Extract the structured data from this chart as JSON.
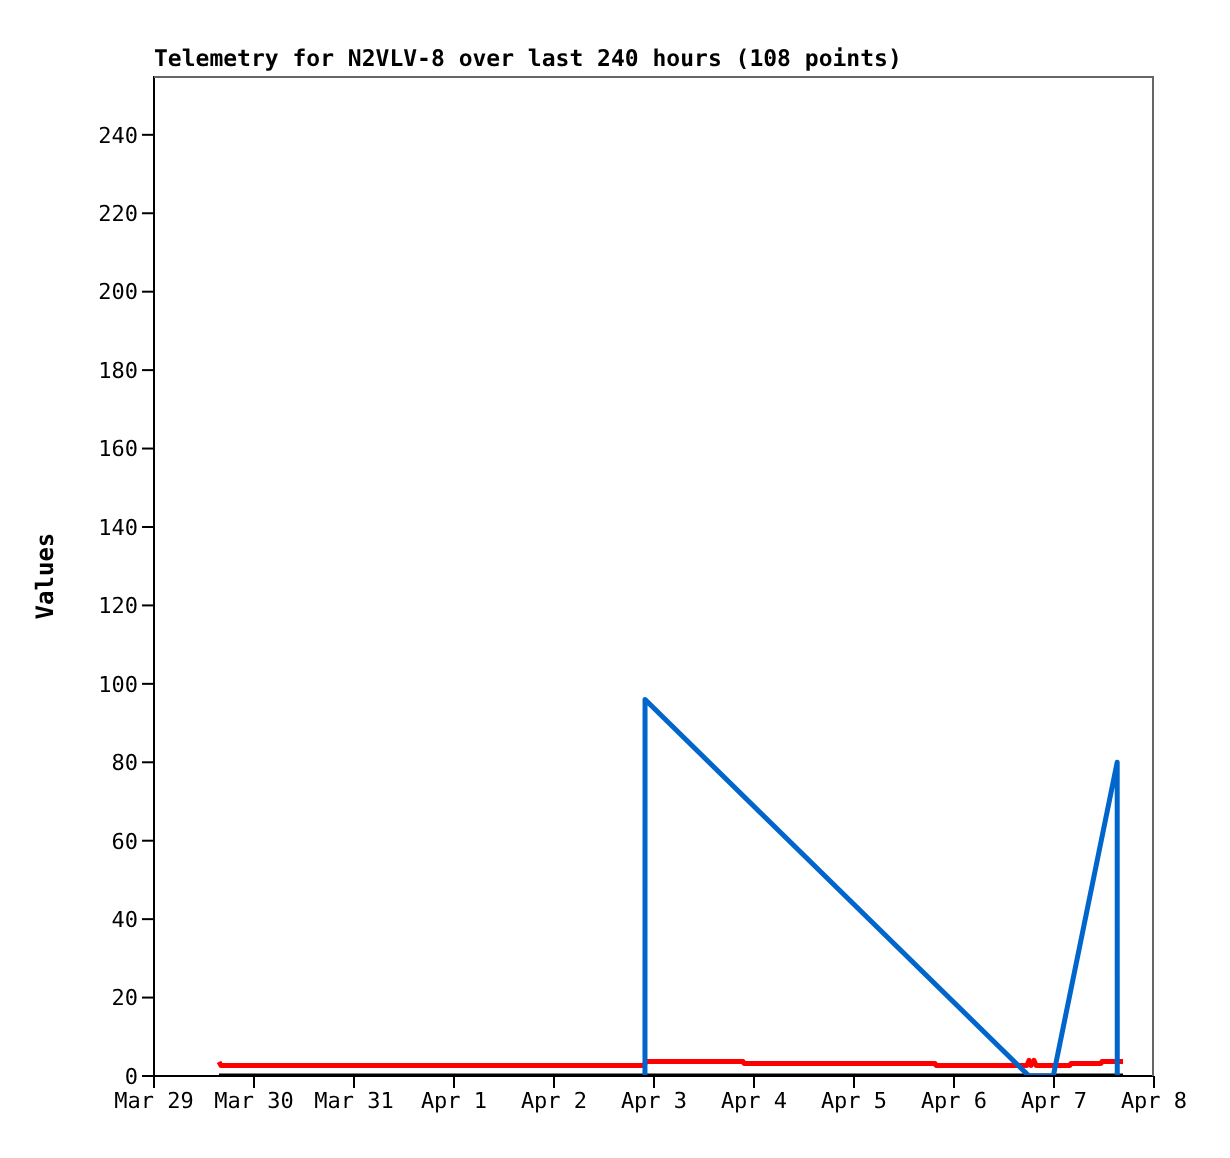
{
  "chart_data": {
    "type": "line",
    "title": "Telemetry for N2VLV-8 over last 240 hours (108 points)",
    "ylabel": "Values",
    "xlim": [
      "--03-29",
      "--04-08"
    ],
    "xticks": [
      {
        "value": "--03-29",
        "label": "Mar 29"
      },
      {
        "value": "--03-30",
        "label": "Mar 30"
      },
      {
        "value": "--03-31",
        "label": "Mar 31"
      },
      {
        "value": "--04-01",
        "label": "Apr 1"
      },
      {
        "value": "--04-02",
        "label": "Apr 2"
      },
      {
        "value": "--04-03",
        "label": "Apr 3"
      },
      {
        "value": "--04-04",
        "label": "Apr 4"
      },
      {
        "value": "--04-05",
        "label": "Apr 5"
      },
      {
        "value": "--04-06",
        "label": "Apr 6"
      },
      {
        "value": "--04-07",
        "label": "Apr 7"
      },
      {
        "value": "--04-08",
        "label": "Apr 8"
      }
    ],
    "ylim": [
      0,
      255
    ],
    "yticks": [
      0,
      20,
      40,
      60,
      80,
      100,
      120,
      140,
      160,
      180,
      200,
      220,
      240
    ],
    "marker": "none",
    "line_style": "solid",
    "series": [
      {
        "color": "#ff0000",
        "x": [
          "--03-29T15:36",
          "--03-29T16:05",
          "--04-02T21:36",
          "--04-02T22:05",
          "--04-03T21:22",
          "--04-03T21:36",
          "--04-05T19:26",
          "--04-05T19:41",
          "--04-06T17:31",
          "--04-06T18:00",
          "--04-06T18:29",
          "--04-06T19:12",
          "--04-06T19:41",
          "--04-07T03:50",
          "--04-07T04:05",
          "--04-07T11:17",
          "--04-07T11:31",
          "--04-07T16:34"
        ],
        "values": [
          3.6,
          2.7,
          2.7,
          3.7,
          3.7,
          3.2,
          3.2,
          2.7,
          2.7,
          4,
          2.7,
          4,
          2.7,
          2.7,
          3.2,
          3.2,
          3.7,
          3.7
        ]
      },
      {
        "color": "#000000",
        "x": [
          "--03-29T15:36",
          "--04-07T16:34"
        ],
        "values": [
          0,
          0
        ]
      },
      {
        "color": "#0066cc",
        "x": [
          "--04-02T21:50",
          "--04-02T21:51",
          "--04-06T18:00",
          "--04-06T23:50",
          "--04-07T15:10",
          "--04-07T15:11"
        ],
        "values": [
          0,
          96,
          0,
          0,
          80,
          0
        ]
      }
    ]
  }
}
